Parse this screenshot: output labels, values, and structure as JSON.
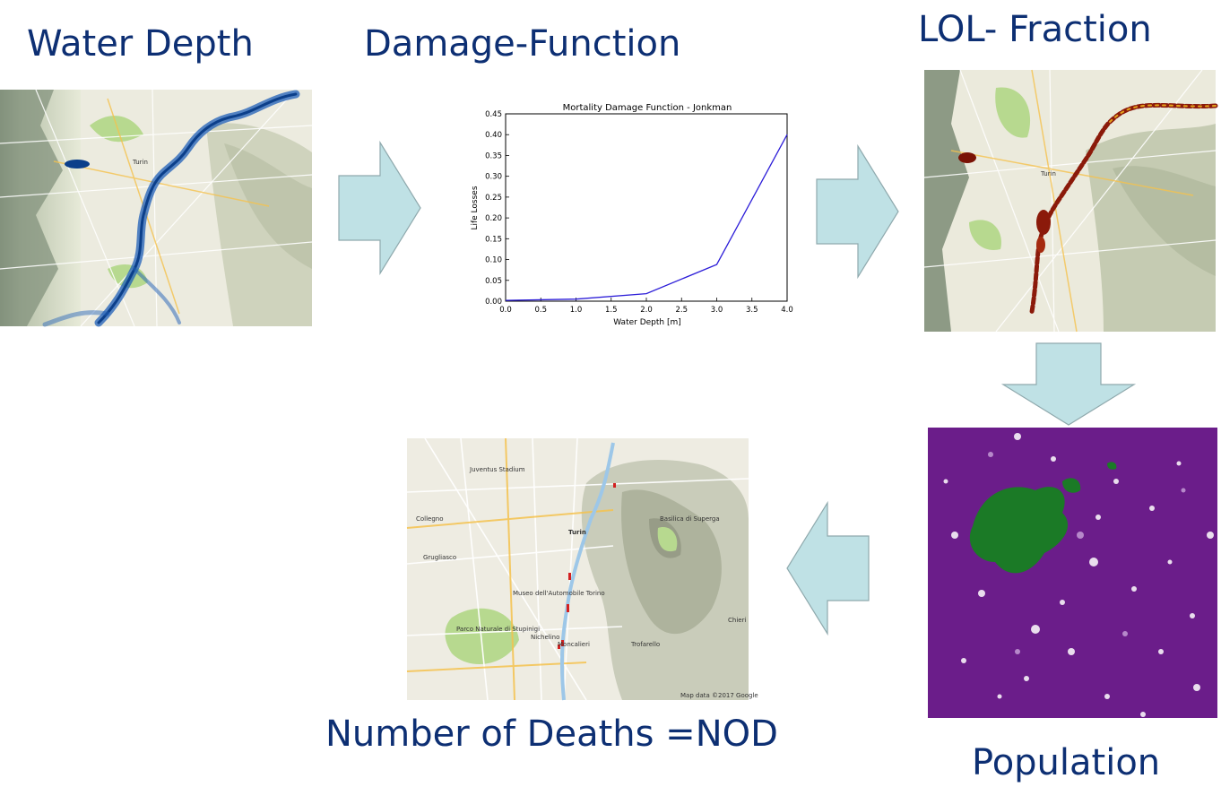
{
  "titles": {
    "water_depth": "Water Depth",
    "damage_function": "Damage-Function",
    "lol_fraction": "LOL- Fraction",
    "population": "Population",
    "nod": "Number of Deaths =NOD"
  },
  "map_labels": {
    "turin": "Turin",
    "juventus": "Juventus Stadium",
    "collegno": "Collegno",
    "grugliasco": "Grugliasco",
    "moncalieri": "Moncalieri",
    "nichelino": "Nichelino",
    "trofarello": "Trofarello",
    "chieri": "Chieri",
    "superga": "Basilica di Superga",
    "parco_stupinigi": "Parco Naturale di Stupinigi",
    "museo": "Museo dell'Automobile Torino",
    "attribution": "Map data ©2017 Google"
  },
  "colors": {
    "title": "#0d2f73",
    "arrow_fill": "#bfe1e5",
    "arrow_stroke": "#8fa9ad",
    "chart_line": "#2c1dd8",
    "population_bg": "#6b1d8a",
    "population_urban": "#1b7a26",
    "flood_blue": "#1f5fb8",
    "lol_red": "#8b1a0a"
  },
  "chart_data": {
    "type": "line",
    "title": "Mortality Damage Function - Jonkman",
    "xlabel": "Water Depth [m]",
    "ylabel": "Life Losses",
    "x": [
      0.0,
      1.0,
      2.0,
      3.0,
      4.0
    ],
    "y": [
      0.002,
      0.005,
      0.018,
      0.088,
      0.4
    ],
    "xlim": [
      0.0,
      4.0
    ],
    "ylim": [
      0.0,
      0.45
    ],
    "xticks": [
      "0.0",
      "0.5",
      "1.0",
      "1.5",
      "2.0",
      "2.5",
      "3.0",
      "3.5",
      "4.0"
    ],
    "yticks": [
      "0.00",
      "0.05",
      "0.10",
      "0.15",
      "0.20",
      "0.25",
      "0.30",
      "0.35",
      "0.40",
      "0.45"
    ],
    "grid": false
  }
}
